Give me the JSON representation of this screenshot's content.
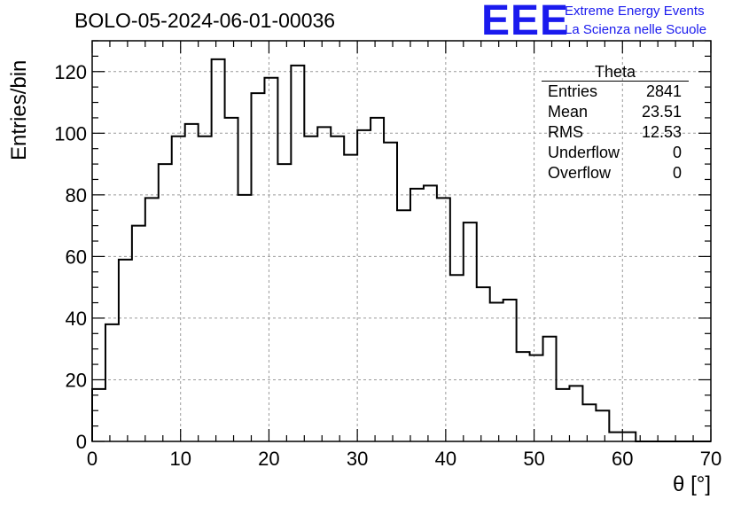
{
  "title": "BOLO-05-2024-06-01-00036",
  "logo": {
    "mark": "EEE",
    "line1": "Extreme Energy Events",
    "line2": "La Scienza nelle Scuole",
    "color": "#1a1aee"
  },
  "stats": {
    "title": "Theta",
    "rows": [
      {
        "label": "Entries",
        "value": "2841"
      },
      {
        "label": "Mean",
        "value": "23.51"
      },
      {
        "label": "RMS",
        "value": "12.53"
      },
      {
        "label": "Underflow",
        "value": "0"
      },
      {
        "label": "Overflow",
        "value": "0"
      }
    ]
  },
  "chart_data": {
    "type": "bar",
    "style": "step-histogram",
    "title": "BOLO-05-2024-06-01-00036",
    "xlabel": "θ [°]",
    "ylabel": "Entries/bin",
    "xlim": [
      0,
      70
    ],
    "ylim": [
      0,
      130
    ],
    "x_ticks": [
      0,
      10,
      20,
      30,
      40,
      50,
      60,
      70
    ],
    "y_ticks": [
      0,
      20,
      40,
      60,
      80,
      100,
      120
    ],
    "grid": true,
    "bin_width": 1.5,
    "bin_edges_start": 0,
    "values": [
      17,
      38,
      59,
      70,
      79,
      90,
      99,
      103,
      99,
      124,
      105,
      80,
      113,
      118,
      90,
      122,
      99,
      102,
      99,
      93,
      101,
      105,
      97,
      75,
      82,
      83,
      79,
      54,
      71,
      50,
      45,
      46,
      29,
      28,
      34,
      17,
      18,
      12,
      10,
      3,
      3,
      0,
      0,
      0,
      0,
      0,
      0
    ],
    "line_color": "#000000"
  }
}
